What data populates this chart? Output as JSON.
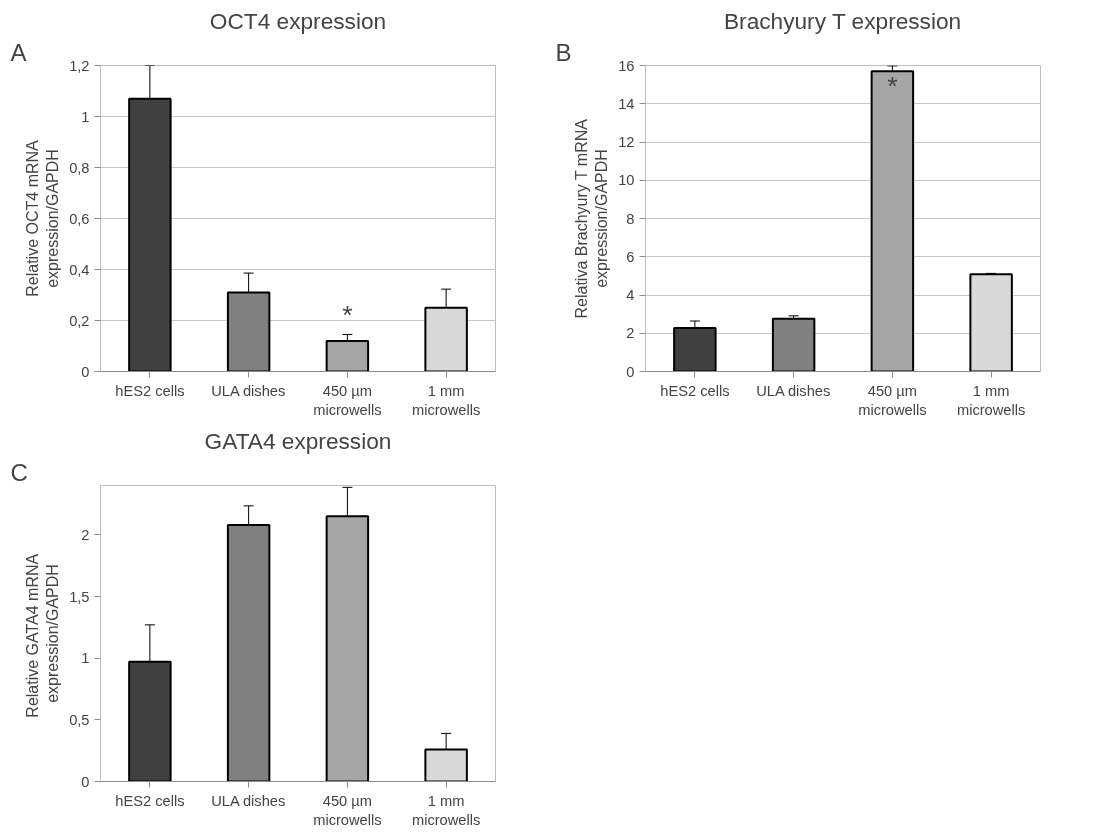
{
  "chart_data": [
    {
      "type": "bar",
      "title": "OCT4 expression",
      "ylabel": "Relative OCT4 mRNA expression/GAPDH",
      "categories": [
        "hES2 cells",
        "ULA dishes",
        "450 µm microwells",
        "1 mm microwells"
      ],
      "values": [
        1.07,
        0.31,
        0.12,
        0.25
      ],
      "errors": [
        0.13,
        0.076,
        0.025,
        0.073
      ],
      "colors": [
        "#404040",
        "#808080",
        "#a6a6a6",
        "#d9d9d9"
      ],
      "ylim": [
        0,
        1.2
      ],
      "yticks": [
        0,
        {
          "value": 0.2,
          "label": "0,2"
        },
        {
          "value": 0.4,
          "label": "0,4"
        },
        {
          "value": 0.6,
          "label": "0,6"
        },
        {
          "value": 0.8,
          "label": "0,8"
        },
        1,
        {
          "value": 1.2,
          "label": "1,2"
        }
      ],
      "grid": "y",
      "annotations": [
        "A",
        {
          "text": "*",
          "x": "450 µm microwells",
          "y": 0.147
        }
      ]
    },
    {
      "type": "bar",
      "title": "Brachyury T expression",
      "ylabel": "Relativa Brachyury T mRNA expression/GAPDH",
      "categories": [
        "hES2 cells",
        "ULA dishes",
        "450 µm microwells",
        "1 mm microwells"
      ],
      "values": [
        2.28,
        2.76,
        15.7,
        5.09
      ],
      "errors": [
        0.36,
        0.15,
        0.28,
        0.04
      ],
      "colors": [
        "#404040",
        "#808080",
        "#a6a6a6",
        "#d9d9d9"
      ],
      "ylim": [
        0,
        16
      ],
      "yticks": [
        0,
        2,
        4,
        6,
        8,
        10,
        12,
        14,
        16
      ],
      "grid": "y",
      "annotations": [
        "B",
        {
          "text": "*",
          "x": "450 µm microwells",
          "y": 16
        }
      ]
    },
    {
      "type": "bar",
      "title": "GATA4 expression",
      "ylabel": "Relative GATA4  mRNA expression/GAPDH",
      "categories": [
        "hES2 cells",
        "ULA dishes",
        "450 µm microwells",
        "1 mm microwells"
      ],
      "values": [
        0.97,
        2.08,
        2.15,
        0.26
      ],
      "errors": [
        0.3,
        0.155,
        0.235,
        0.13
      ],
      "colors": [
        "#404040",
        "#808080",
        "#a6a6a6",
        "#d9d9d9"
      ],
      "ylim": [
        0,
        2.4
      ],
      "yticks": [
        0,
        {
          "value": 0.5,
          "label": "0,5"
        },
        1,
        {
          "value": 1.5,
          "label": "1,5"
        },
        2
      ],
      "grid": false,
      "annotations": [
        "C"
      ]
    }
  ]
}
